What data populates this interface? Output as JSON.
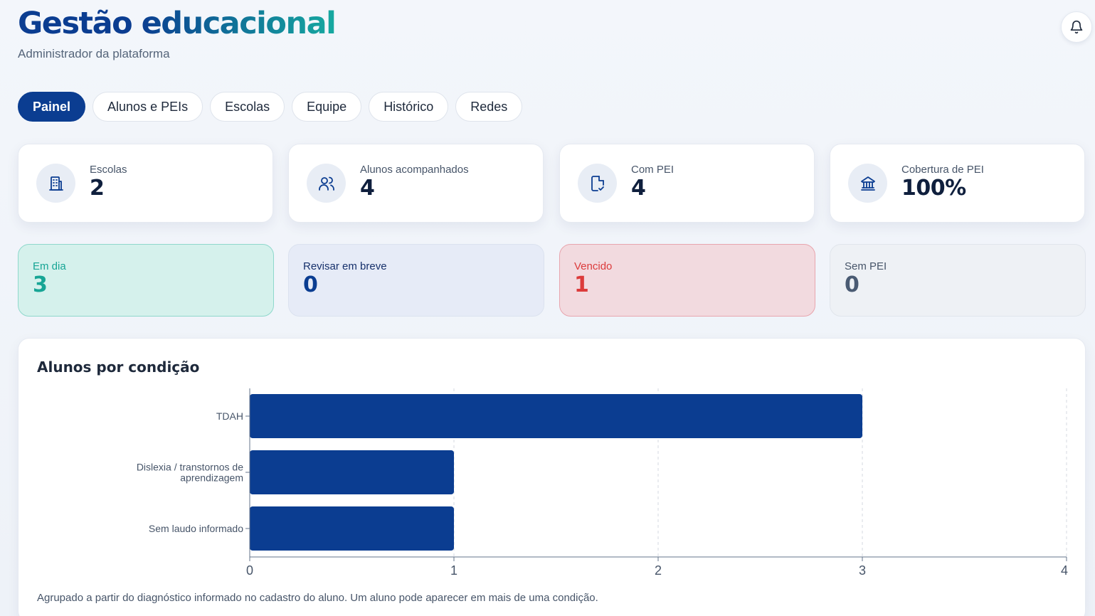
{
  "header": {
    "title": "Gestão educacional",
    "subtitle": "Administrador da plataforma"
  },
  "icons": {
    "notifications": "bell-icon"
  },
  "tabs": [
    {
      "label": "Painel",
      "active": true
    },
    {
      "label": "Alunos e PEIs"
    },
    {
      "label": "Escolas"
    },
    {
      "label": "Equipe"
    },
    {
      "label": "Histórico"
    },
    {
      "label": "Redes"
    }
  ],
  "stats": [
    {
      "label": "Escolas",
      "value": "2",
      "icon": "building-icon"
    },
    {
      "label": "Alunos acompanhados",
      "value": "4",
      "icon": "users-icon"
    },
    {
      "label": "Com PEI",
      "value": "4",
      "icon": "document-check-icon"
    },
    {
      "label": "Cobertura de PEI",
      "value": "100%",
      "icon": "bank-icon"
    }
  ],
  "status": [
    {
      "label": "Em dia",
      "value": "3"
    },
    {
      "label": "Revisar em breve",
      "value": "0"
    },
    {
      "label": "Vencido",
      "value": "1"
    },
    {
      "label": "Sem PEI",
      "value": "0"
    }
  ],
  "colors": {
    "primary": "#0b3d91",
    "teal": "#16a9a0",
    "danger": "#dc3b3b"
  },
  "chart_card": {
    "title": "Alunos por condição",
    "footnote": "Agrupado a partir do diagnóstico informado no cadastro do aluno. Um aluno pode aparecer em mais de uma condição."
  },
  "chart_data": {
    "type": "bar",
    "orientation": "horizontal",
    "categories": [
      [
        "TDAH"
      ],
      [
        "Dislexia / transtornos de",
        "aprendizagem"
      ],
      [
        "Sem laudo informado"
      ]
    ],
    "values": [
      3,
      1,
      1
    ],
    "xlim": [
      0,
      4
    ],
    "xticks": [
      "0",
      "1",
      "2",
      "3",
      "4"
    ],
    "grid": true,
    "bar_color": "#0b3d91"
  }
}
